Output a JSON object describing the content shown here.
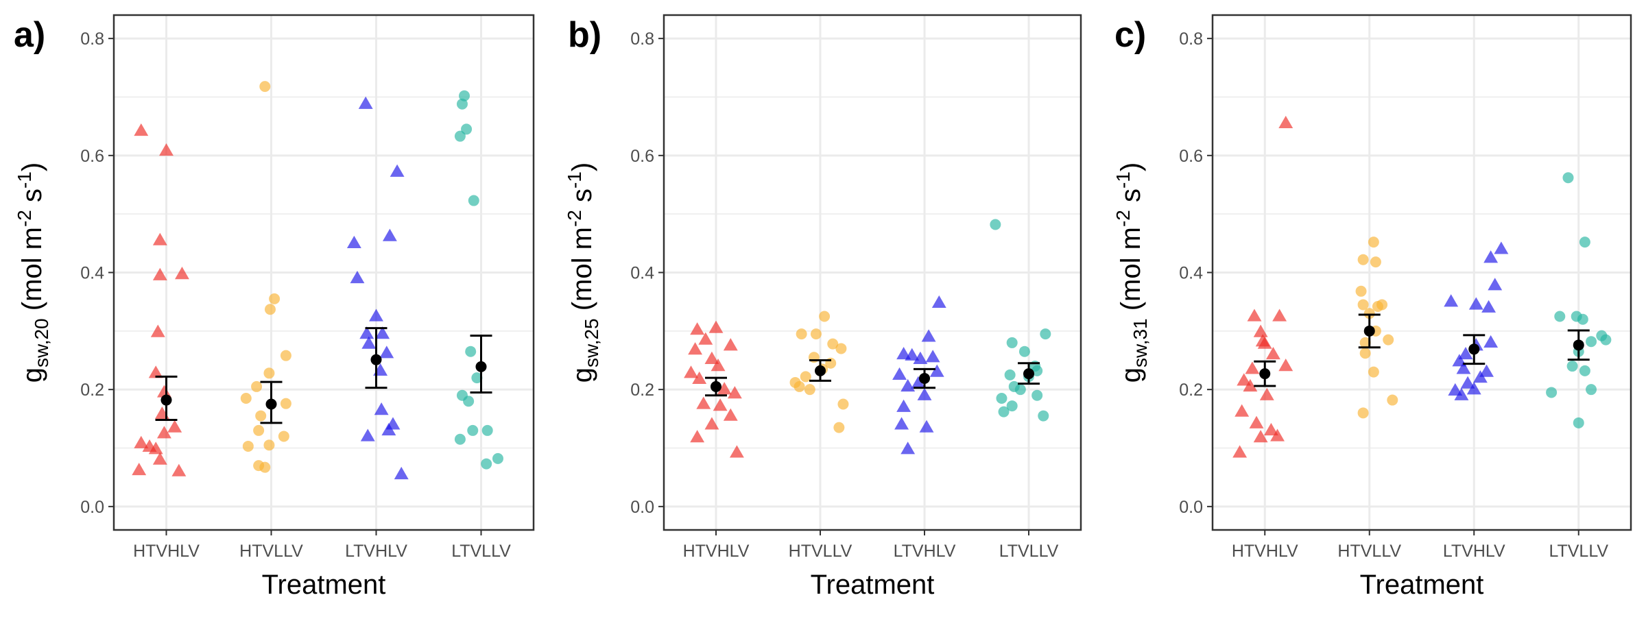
{
  "colors": {
    "HTVHLV": "#ee2a24",
    "HTVLLV": "#f9b233",
    "LTVHLV": "#1a12e8",
    "LTVLLV": "#26b5a2",
    "mean": "#000000",
    "grid": "#ebebeb",
    "panel_border": "#333333"
  },
  "chart_data": [
    {
      "type": "scatter",
      "panel_label": "a)",
      "ylabel": {
        "base": "g",
        "sub": "sw,20",
        "unit_pre": " (mol m",
        "exp1": "-2",
        "mid": " s",
        "exp2": "-1",
        "close": ")"
      },
      "xlabel": "Treatment",
      "categories": [
        "HTVHLV",
        "HTVLLV",
        "LTVHLV",
        "LTVLLV"
      ],
      "ylim": [
        -0.04,
        0.84
      ],
      "yticks": [
        0.0,
        0.2,
        0.4,
        0.6,
        0.8
      ],
      "ytick_labels": [
        "0.0",
        "0.2",
        "0.4",
        "0.6",
        "0.8"
      ],
      "grid": true,
      "markers": [
        "triangle",
        "circle",
        "triangle",
        "circle"
      ],
      "series": [
        {
          "category": "HTVHLV",
          "points": [
            [
              -0.24,
              0.642
            ],
            [
              0.0,
              0.608
            ],
            [
              -0.06,
              0.455
            ],
            [
              -0.06,
              0.395
            ],
            [
              0.15,
              0.397
            ],
            [
              -0.08,
              0.298
            ],
            [
              -0.1,
              0.228
            ],
            [
              -0.02,
              0.195
            ],
            [
              -0.04,
              0.158
            ],
            [
              0.08,
              0.135
            ],
            [
              -0.02,
              0.125
            ],
            [
              -0.24,
              0.108
            ],
            [
              -0.16,
              0.102
            ],
            [
              -0.1,
              0.098
            ],
            [
              -0.06,
              0.08
            ],
            [
              -0.26,
              0.062
            ],
            [
              0.12,
              0.06
            ]
          ]
        },
        {
          "category": "HTVLLV",
          "points": [
            [
              -0.06,
              0.718
            ],
            [
              0.03,
              0.355
            ],
            [
              -0.01,
              0.337
            ],
            [
              0.14,
              0.258
            ],
            [
              -0.02,
              0.228
            ],
            [
              0.14,
              0.176
            ],
            [
              -0.24,
              0.185
            ],
            [
              -0.14,
              0.205
            ],
            [
              -0.1,
              0.155
            ],
            [
              -0.12,
              0.13
            ],
            [
              0.12,
              0.12
            ],
            [
              -0.02,
              0.105
            ],
            [
              -0.22,
              0.103
            ],
            [
              -0.12,
              0.07
            ],
            [
              -0.06,
              0.067
            ]
          ]
        },
        {
          "category": "LTVHLV",
          "points": [
            [
              -0.1,
              0.688
            ],
            [
              0.2,
              0.572
            ],
            [
              0.13,
              0.462
            ],
            [
              -0.21,
              0.45
            ],
            [
              -0.18,
              0.39
            ],
            [
              0.0,
              0.325
            ],
            [
              -0.09,
              0.295
            ],
            [
              0.06,
              0.295
            ],
            [
              -0.07,
              0.278
            ],
            [
              0.1,
              0.262
            ],
            [
              0.04,
              0.232
            ],
            [
              0.05,
              0.165
            ],
            [
              0.16,
              0.14
            ],
            [
              0.12,
              0.13
            ],
            [
              -0.08,
              0.12
            ],
            [
              0.24,
              0.055
            ]
          ]
        },
        {
          "category": "LTVLLV",
          "points": [
            [
              -0.16,
              0.702
            ],
            [
              -0.18,
              0.688
            ],
            [
              -0.14,
              0.645
            ],
            [
              -0.2,
              0.633
            ],
            [
              -0.07,
              0.523
            ],
            [
              -0.1,
              0.265
            ],
            [
              -0.04,
              0.22
            ],
            [
              -0.18,
              0.19
            ],
            [
              -0.12,
              0.18
            ],
            [
              -0.2,
              0.115
            ],
            [
              -0.08,
              0.13
            ],
            [
              0.06,
              0.13
            ],
            [
              0.05,
              0.073
            ],
            [
              0.16,
              0.082
            ]
          ]
        }
      ],
      "means": [
        0.182,
        0.175,
        0.251,
        0.239
      ],
      "error_bars": [
        [
          0.148,
          0.222
        ],
        [
          0.143,
          0.213
        ],
        [
          0.203,
          0.305
        ],
        [
          0.195,
          0.292
        ]
      ]
    },
    {
      "type": "scatter",
      "panel_label": "b)",
      "ylabel": {
        "base": "g",
        "sub": "sw,25",
        "unit_pre": " (mol m",
        "exp1": "-2",
        "mid": " s",
        "exp2": "-1",
        "close": ")"
      },
      "xlabel": "Treatment",
      "categories": [
        "HTVHLV",
        "HTVLLV",
        "LTVHLV",
        "LTVLLV"
      ],
      "ylim": [
        -0.04,
        0.84
      ],
      "yticks": [
        0.0,
        0.2,
        0.4,
        0.6,
        0.8
      ],
      "ytick_labels": [
        "0.0",
        "0.2",
        "0.4",
        "0.6",
        "0.8"
      ],
      "grid": true,
      "markers": [
        "triangle",
        "circle",
        "triangle",
        "circle"
      ],
      "series": [
        {
          "category": "HTVHLV",
          "points": [
            [
              -0.18,
              0.302
            ],
            [
              0.0,
              0.305
            ],
            [
              -0.1,
              0.285
            ],
            [
              -0.2,
              0.268
            ],
            [
              0.14,
              0.275
            ],
            [
              -0.04,
              0.252
            ],
            [
              0.02,
              0.24
            ],
            [
              -0.24,
              0.228
            ],
            [
              -0.16,
              0.218
            ],
            [
              0.08,
              0.2
            ],
            [
              0.18,
              0.193
            ],
            [
              -0.12,
              0.175
            ],
            [
              0.04,
              0.172
            ],
            [
              0.14,
              0.155
            ],
            [
              -0.04,
              0.14
            ],
            [
              -0.18,
              0.118
            ],
            [
              0.2,
              0.092
            ]
          ]
        },
        {
          "category": "HTVLLV",
          "points": [
            [
              0.04,
              0.325
            ],
            [
              -0.18,
              0.295
            ],
            [
              -0.04,
              0.295
            ],
            [
              0.12,
              0.278
            ],
            [
              0.2,
              0.27
            ],
            [
              -0.06,
              0.255
            ],
            [
              0.1,
              0.245
            ],
            [
              0.02,
              0.235
            ],
            [
              -0.14,
              0.222
            ],
            [
              -0.24,
              0.212
            ],
            [
              -0.2,
              0.205
            ],
            [
              -0.1,
              0.2
            ],
            [
              0.22,
              0.175
            ],
            [
              0.18,
              0.135
            ]
          ]
        },
        {
          "category": "LTVHLV",
          "points": [
            [
              0.14,
              0.348
            ],
            [
              0.04,
              0.29
            ],
            [
              -0.2,
              0.26
            ],
            [
              -0.12,
              0.258
            ],
            [
              0.08,
              0.255
            ],
            [
              -0.04,
              0.252
            ],
            [
              0.12,
              0.23
            ],
            [
              -0.24,
              0.225
            ],
            [
              -0.06,
              0.21
            ],
            [
              -0.16,
              0.205
            ],
            [
              0.0,
              0.19
            ],
            [
              -0.2,
              0.17
            ],
            [
              -0.22,
              0.14
            ],
            [
              0.02,
              0.135
            ],
            [
              -0.16,
              0.098
            ]
          ]
        },
        {
          "category": "LTVLLV",
          "points": [
            [
              -0.32,
              0.482
            ],
            [
              -0.16,
              0.28
            ],
            [
              0.16,
              0.295
            ],
            [
              -0.04,
              0.265
            ],
            [
              0.06,
              0.24
            ],
            [
              0.08,
              0.232
            ],
            [
              -0.18,
              0.225
            ],
            [
              0.0,
              0.222
            ],
            [
              -0.14,
              0.205
            ],
            [
              -0.08,
              0.2
            ],
            [
              0.08,
              0.19
            ],
            [
              -0.26,
              0.185
            ],
            [
              -0.16,
              0.172
            ],
            [
              -0.24,
              0.162
            ],
            [
              0.14,
              0.155
            ]
          ]
        }
      ],
      "means": [
        0.205,
        0.232,
        0.219,
        0.227
      ],
      "error_bars": [
        [
          0.19,
          0.22
        ],
        [
          0.215,
          0.25
        ],
        [
          0.203,
          0.235
        ],
        [
          0.21,
          0.245
        ]
      ]
    },
    {
      "type": "scatter",
      "panel_label": "c)",
      "ylabel": {
        "base": "g",
        "sub": "sw,31",
        "unit_pre": " (mol m",
        "exp1": "-2",
        "mid": " s",
        "exp2": "-1",
        "close": ")"
      },
      "xlabel": "Treatment",
      "categories": [
        "HTVHLV",
        "HTVLLV",
        "LTVHLV",
        "LTVLLV"
      ],
      "ylim": [
        -0.04,
        0.84
      ],
      "yticks": [
        0.0,
        0.2,
        0.4,
        0.6,
        0.8
      ],
      "ytick_labels": [
        "0.0",
        "0.2",
        "0.4",
        "0.6",
        "0.8"
      ],
      "grid": true,
      "markers": [
        "triangle",
        "circle",
        "triangle",
        "circle"
      ],
      "series": [
        {
          "category": "HTVHLV",
          "points": [
            [
              0.2,
              0.655
            ],
            [
              -0.1,
              0.325
            ],
            [
              0.14,
              0.325
            ],
            [
              -0.04,
              0.298
            ],
            [
              -0.02,
              0.282
            ],
            [
              0.0,
              0.278
            ],
            [
              0.08,
              0.26
            ],
            [
              0.2,
              0.24
            ],
            [
              -0.12,
              0.235
            ],
            [
              -0.2,
              0.215
            ],
            [
              -0.14,
              0.205
            ],
            [
              0.02,
              0.19
            ],
            [
              -0.22,
              0.162
            ],
            [
              -0.08,
              0.142
            ],
            [
              0.06,
              0.13
            ],
            [
              0.12,
              0.12
            ],
            [
              -0.04,
              0.118
            ],
            [
              -0.24,
              0.092
            ]
          ]
        },
        {
          "category": "HTVLLV",
          "points": [
            [
              0.04,
              0.452
            ],
            [
              -0.06,
              0.422
            ],
            [
              0.06,
              0.418
            ],
            [
              -0.08,
              0.368
            ],
            [
              -0.06,
              0.345
            ],
            [
              0.08,
              0.342
            ],
            [
              0.12,
              0.345
            ],
            [
              0.0,
              0.33
            ],
            [
              0.06,
              0.3
            ],
            [
              -0.04,
              0.28
            ],
            [
              0.18,
              0.285
            ],
            [
              -0.04,
              0.262
            ],
            [
              0.04,
              0.23
            ],
            [
              0.22,
              0.182
            ],
            [
              -0.06,
              0.16
            ]
          ]
        },
        {
          "category": "LTVHLV",
          "points": [
            [
              0.26,
              0.44
            ],
            [
              0.16,
              0.425
            ],
            [
              0.2,
              0.378
            ],
            [
              -0.22,
              0.35
            ],
            [
              0.02,
              0.345
            ],
            [
              0.14,
              0.34
            ],
            [
              0.16,
              0.28
            ],
            [
              0.02,
              0.275
            ],
            [
              -0.08,
              0.26
            ],
            [
              -0.14,
              0.248
            ],
            [
              -0.1,
              0.235
            ],
            [
              0.12,
              0.23
            ],
            [
              0.06,
              0.22
            ],
            [
              -0.06,
              0.21
            ],
            [
              0.0,
              0.2
            ],
            [
              -0.12,
              0.19
            ],
            [
              -0.18,
              0.198
            ]
          ]
        },
        {
          "category": "LTVLLV",
          "points": [
            [
              -0.1,
              0.562
            ],
            [
              0.06,
              0.452
            ],
            [
              -0.02,
              0.325
            ],
            [
              -0.18,
              0.325
            ],
            [
              0.04,
              0.32
            ],
            [
              0.22,
              0.292
            ],
            [
              0.26,
              0.285
            ],
            [
              0.12,
              0.282
            ],
            [
              0.0,
              0.265
            ],
            [
              -0.06,
              0.24
            ],
            [
              0.06,
              0.232
            ],
            [
              -0.26,
              0.195
            ],
            [
              0.12,
              0.2
            ],
            [
              0.0,
              0.143
            ]
          ]
        }
      ],
      "means": [
        0.227,
        0.3,
        0.269,
        0.276
      ],
      "error_bars": [
        [
          0.206,
          0.248
        ],
        [
          0.272,
          0.328
        ],
        [
          0.244,
          0.293
        ],
        [
          0.251,
          0.301
        ]
      ]
    }
  ]
}
